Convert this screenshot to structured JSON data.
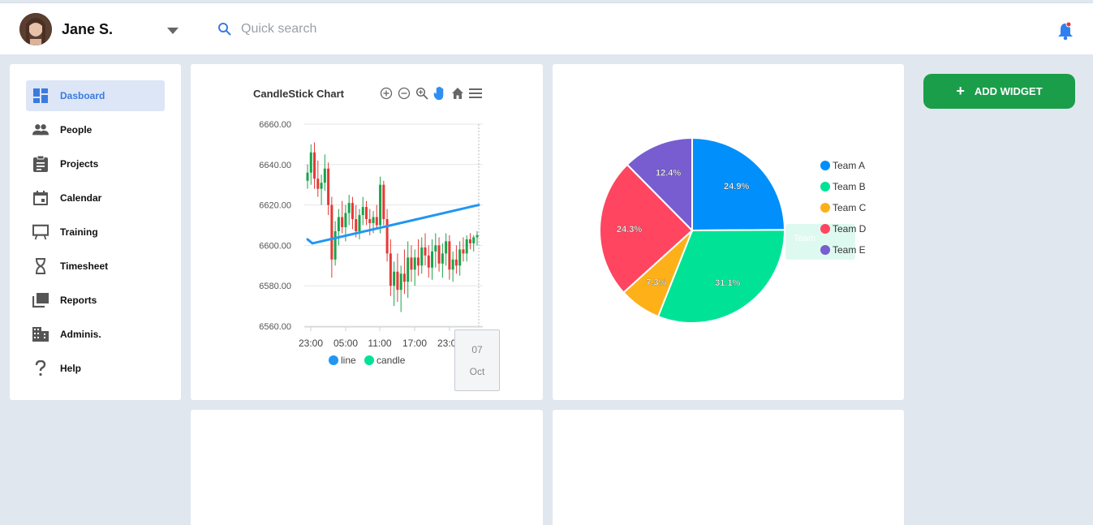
{
  "header": {
    "user_name": "Jane S.",
    "search_placeholder": "Quick search"
  },
  "sidebar": {
    "items": [
      {
        "label": "Dasboard",
        "icon": "dashboard-icon",
        "active": true
      },
      {
        "label": "People",
        "icon": "people-icon"
      },
      {
        "label": "Projects",
        "icon": "clipboard-icon"
      },
      {
        "label": "Calendar",
        "icon": "calendar-icon"
      },
      {
        "label": "Training",
        "icon": "easel-icon"
      },
      {
        "label": "Timesheet",
        "icon": "hourglass-icon"
      },
      {
        "label": "Reports",
        "icon": "reports-icon"
      },
      {
        "label": "Adminis.",
        "icon": "building-icon"
      },
      {
        "label": "Help",
        "icon": "help-icon"
      }
    ]
  },
  "actions": {
    "add_widget_label": "ADD WIDGET"
  },
  "colors": {
    "accent": "#3b7be0",
    "add_widget": "#1a9e4a",
    "line": "#2196f3",
    "candle_up": "#1aa34a",
    "candle_down": "#e53935",
    "team_a": "#008ffb",
    "team_b": "#00e396",
    "team_c": "#feb019",
    "team_d": "#ff4560",
    "team_e": "#775dd0"
  },
  "chart_data": [
    {
      "type": "candlestick",
      "title": "CandleStick Chart",
      "ylim": [
        6560,
        6660
      ],
      "y_ticks": [
        "6660.00",
        "6640.00",
        "6620.00",
        "6600.00",
        "6580.00",
        "6560.00"
      ],
      "x_ticks": [
        "23:00",
        "05:00",
        "11:00",
        "17:00",
        "23:00"
      ],
      "legend": [
        "line",
        "candle"
      ],
      "tooltip": [
        "07",
        "Oct"
      ],
      "line_series": {
        "name": "line",
        "values": [
          6603,
          6601,
          6620
        ]
      },
      "candle_series": {
        "name": "candle",
        "ohlc": [
          [
            6632,
            6640,
            6628,
            6636
          ],
          [
            6636,
            6650,
            6630,
            6646
          ],
          [
            6646,
            6651,
            6628,
            6633
          ],
          [
            6633,
            6642,
            6624,
            6628
          ],
          [
            6628,
            6635,
            6620,
            6631
          ],
          [
            6631,
            6645,
            6627,
            6638
          ],
          [
            6638,
            6641,
            6615,
            6620
          ],
          [
            6620,
            6624,
            6584,
            6593
          ],
          [
            6593,
            6612,
            6590,
            6607
          ],
          [
            6607,
            6618,
            6600,
            6614
          ],
          [
            6614,
            6622,
            6606,
            6609
          ],
          [
            6609,
            6620,
            6602,
            6616
          ],
          [
            6616,
            6625,
            6610,
            6621
          ],
          [
            6621,
            6624,
            6608,
            6613
          ],
          [
            6613,
            6620,
            6604,
            6607
          ],
          [
            6607,
            6618,
            6603,
            6615
          ],
          [
            6615,
            6624,
            6610,
            6619
          ],
          [
            6619,
            6622,
            6610,
            6613
          ],
          [
            6613,
            6618,
            6605,
            6611
          ],
          [
            6611,
            6617,
            6606,
            6614
          ],
          [
            6614,
            6620,
            6608,
            6610
          ],
          [
            6610,
            6634,
            6606,
            6630
          ],
          [
            6630,
            6632,
            6610,
            6613
          ],
          [
            6613,
            6618,
            6592,
            6596
          ],
          [
            6596,
            6603,
            6575,
            6580
          ],
          [
            6580,
            6592,
            6570,
            6587
          ],
          [
            6587,
            6596,
            6572,
            6578
          ],
          [
            6578,
            6590,
            6567,
            6586
          ],
          [
            6586,
            6598,
            6576,
            6582
          ],
          [
            6582,
            6602,
            6574,
            6594
          ],
          [
            6594,
            6600,
            6582,
            6588
          ],
          [
            6588,
            6598,
            6580,
            6594
          ],
          [
            6594,
            6603,
            6585,
            6590
          ],
          [
            6590,
            6604,
            6586,
            6599
          ],
          [
            6599,
            6606,
            6590,
            6595
          ],
          [
            6595,
            6600,
            6584,
            6589
          ],
          [
            6589,
            6603,
            6583,
            6597
          ],
          [
            6597,
            6606,
            6589,
            6600
          ],
          [
            6600,
            6604,
            6587,
            6591
          ],
          [
            6591,
            6601,
            6584,
            6596
          ],
          [
            6596,
            6606,
            6590,
            6602
          ],
          [
            6602,
            6605,
            6583,
            6588
          ],
          [
            6588,
            6597,
            6582,
            6593
          ],
          [
            6593,
            6600,
            6586,
            6590
          ],
          [
            6590,
            6602,
            6585,
            6598
          ],
          [
            6598,
            6604,
            6592,
            6596
          ],
          [
            6596,
            6605,
            6592,
            6603
          ],
          [
            6603,
            6606,
            6598,
            6601
          ],
          [
            6601,
            6605,
            6597,
            6604
          ],
          [
            6604,
            6607,
            6600,
            6605
          ]
        ]
      }
    },
    {
      "type": "pie",
      "legend": [
        "Team A",
        "Team B",
        "Team C",
        "Team D",
        "Team E"
      ],
      "values": [
        24.9,
        31.1,
        7.3,
        24.3,
        12.4
      ],
      "labels": [
        "24.9%",
        "31.1%",
        "7.3%",
        "24.3%",
        "12.4%"
      ],
      "tooltip_text": "Team"
    }
  ]
}
